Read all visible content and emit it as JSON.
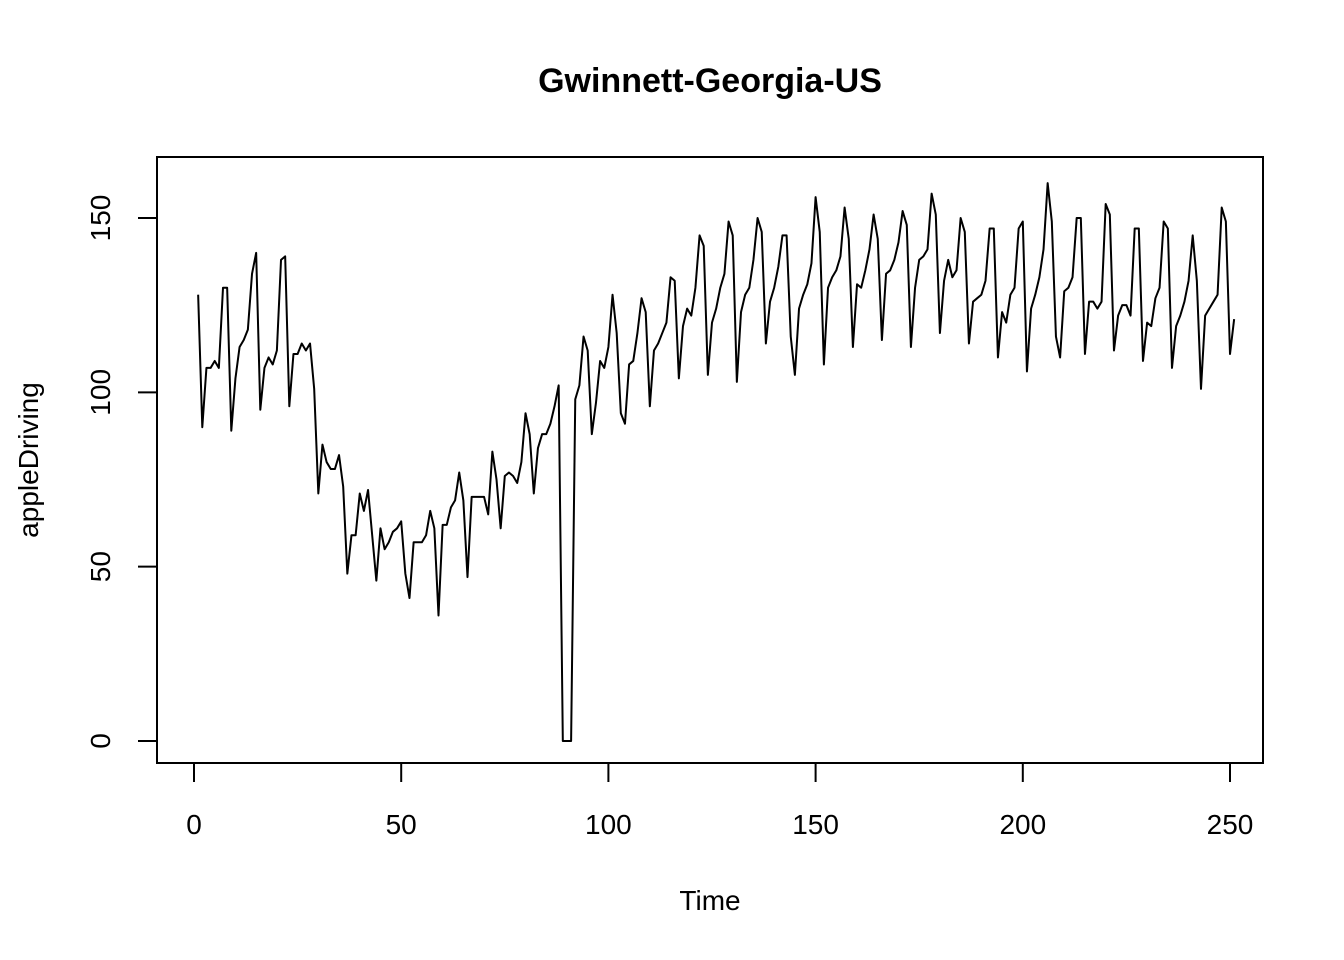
{
  "chart_data": {
    "type": "line",
    "title": "Gwinnett-Georgia-US",
    "xlabel": "Time",
    "ylabel": "appleDriving",
    "xlim": [
      0,
      250
    ],
    "ylim": [
      0,
      160
    ],
    "x_ticks": [
      0,
      50,
      100,
      150,
      200,
      250
    ],
    "y_ticks": [
      0,
      50,
      100,
      150
    ],
    "grid": false,
    "series": [
      {
        "values": [
          128,
          90,
          107,
          107,
          109,
          107,
          130,
          130,
          89,
          104,
          113,
          115,
          118,
          134,
          140,
          95,
          107,
          110,
          108,
          112,
          138,
          139,
          96,
          111,
          111,
          114,
          112,
          114,
          101,
          71,
          85,
          80,
          78,
          78,
          82,
          73,
          48,
          59,
          59,
          71,
          66,
          72,
          59,
          46,
          61,
          55,
          57,
          60,
          61,
          63,
          48,
          41,
          57,
          57,
          57,
          59,
          66,
          61,
          36,
          62,
          62,
          67,
          69,
          77,
          69,
          47,
          70,
          70,
          70,
          70,
          65,
          83,
          75,
          61,
          76,
          77,
          76,
          74,
          80,
          94,
          88,
          71,
          84,
          88,
          88,
          91,
          96,
          102,
          0,
          0,
          0,
          98,
          102,
          116,
          112,
          88,
          97,
          109,
          107,
          113,
          128,
          117,
          94,
          91,
          108,
          109,
          117,
          127,
          123,
          96,
          112,
          114,
          117,
          120,
          133,
          132,
          104,
          119,
          124,
          122,
          130,
          145,
          142,
          105,
          120,
          124,
          130,
          134,
          149,
          145,
          103,
          123,
          128,
          130,
          138,
          150,
          146,
          114,
          126,
          130,
          136,
          145,
          145,
          116,
          105,
          124,
          128,
          131,
          137,
          156,
          146,
          108,
          130,
          133,
          135,
          139,
          153,
          144,
          113,
          131,
          130,
          135,
          141,
          151,
          144,
          115,
          134,
          135,
          138,
          143,
          152,
          148,
          113,
          130,
          138,
          139,
          141,
          157,
          151,
          117,
          132,
          138,
          133,
          135,
          150,
          146,
          114,
          126,
          127,
          128,
          132,
          147,
          147,
          110,
          123,
          120,
          128,
          130,
          147,
          149,
          106,
          124,
          128,
          133,
          141,
          160,
          149,
          116,
          110,
          129,
          130,
          133,
          150,
          150,
          111,
          126,
          126,
          124,
          126,
          154,
          151,
          112,
          122,
          125,
          125,
          122,
          147,
          147,
          109,
          120,
          119,
          127,
          130,
          149,
          147,
          107,
          119,
          122,
          126,
          132,
          145,
          132,
          101,
          122,
          124,
          126,
          128,
          153,
          149,
          111,
          121
        ]
      }
    ]
  }
}
